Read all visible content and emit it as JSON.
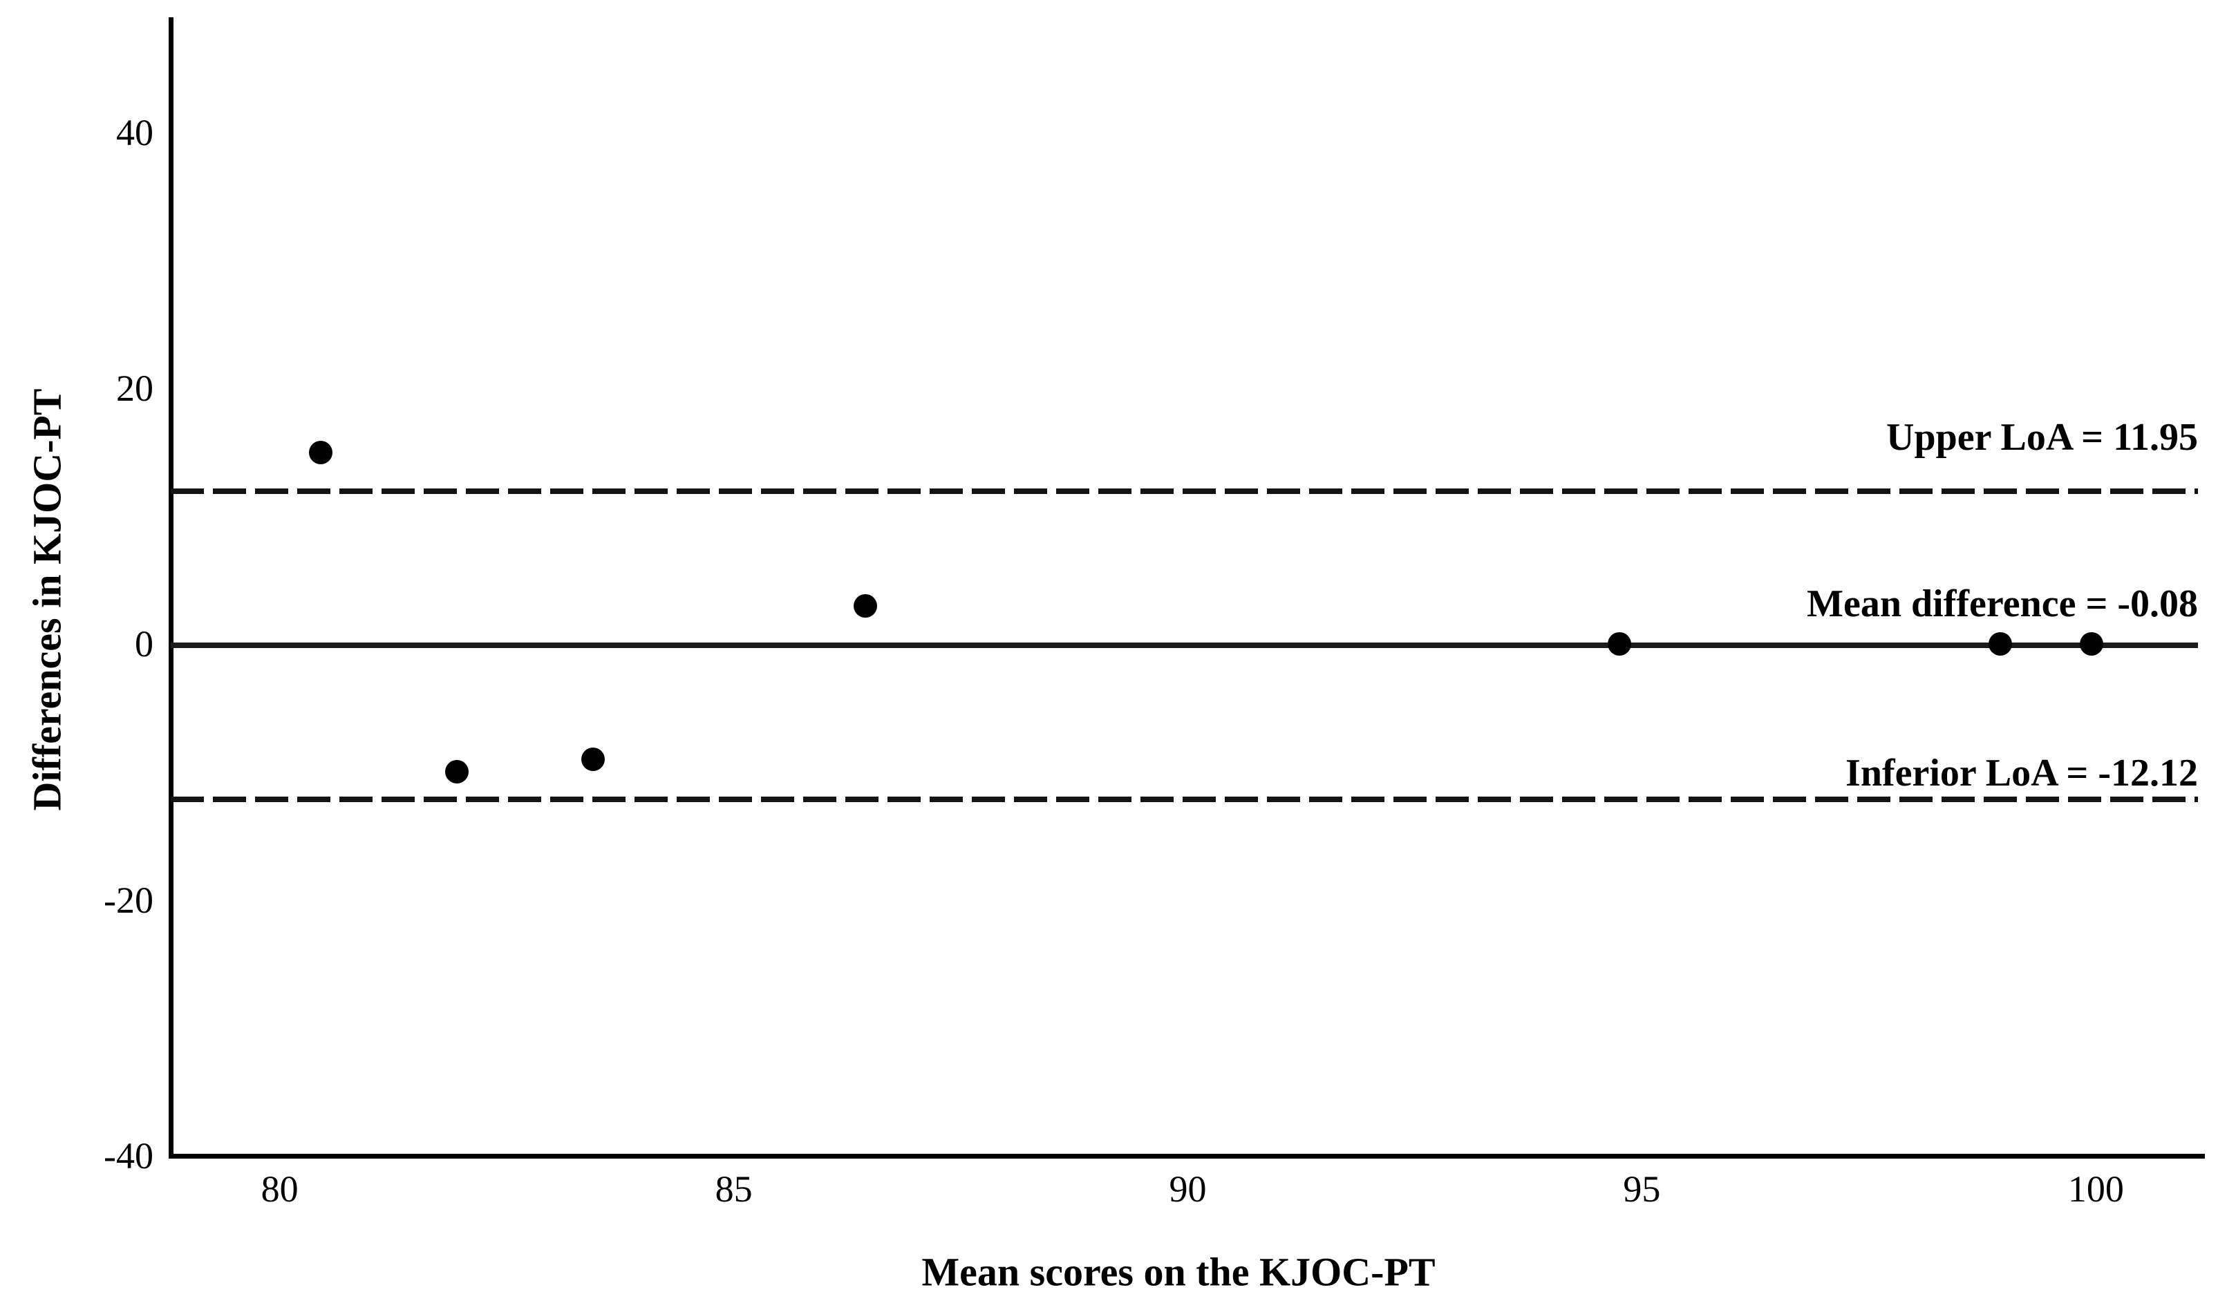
{
  "chart_data": {
    "type": "scatter",
    "title": "",
    "xlabel": "Mean scores on the KJOC-PT",
    "ylabel": "Differences in KJOC-PT",
    "xlim": [
      78.8,
      101.2
    ],
    "ylim": [
      -40,
      49
    ],
    "x_ticks": [
      80,
      85,
      90,
      95,
      100
    ],
    "y_ticks": [
      40,
      20,
      0,
      -20,
      -40
    ],
    "grid": false,
    "legend": "none",
    "point_color": "#000000",
    "line_color": "#1c1c1c",
    "background_color": "#ffffff",
    "points": [
      {
        "x": 80.45,
        "y": 15
      },
      {
        "x": 81.95,
        "y": -10
      },
      {
        "x": 83.45,
        "y": -9
      },
      {
        "x": 86.45,
        "y": 3
      },
      {
        "x": 94.75,
        "y": 0
      },
      {
        "x": 98.95,
        "y": 0
      },
      {
        "x": 99.95,
        "y": 0
      }
    ],
    "reference_lines": [
      {
        "name": "upper-loa",
        "label": "Upper LoA = 11.95",
        "value": 11.95,
        "style": "dashed"
      },
      {
        "name": "mean-difference",
        "label": "Mean difference = -0.08",
        "value": -0.08,
        "style": "solid"
      },
      {
        "name": "inferior-loa",
        "label": "Inferior LoA = -12.12",
        "value": -12.12,
        "style": "dashed"
      }
    ]
  }
}
